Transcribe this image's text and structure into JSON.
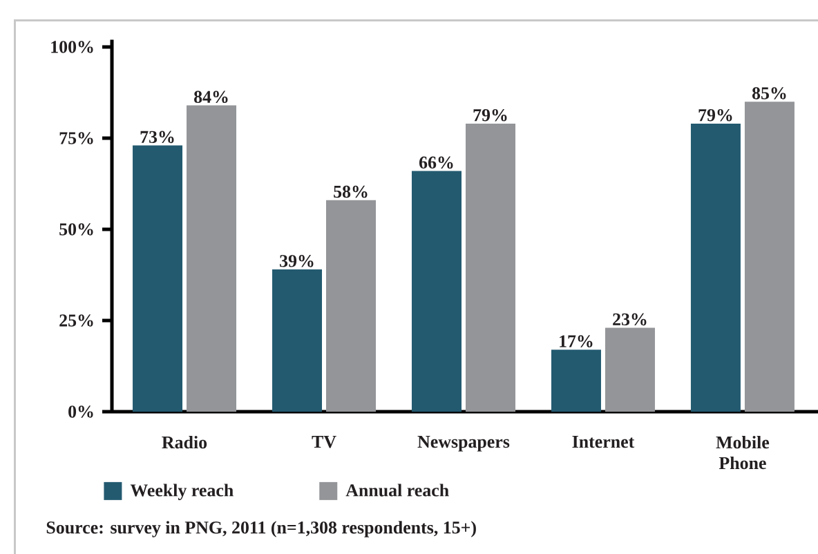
{
  "chart_data": {
    "type": "bar",
    "categories": [
      "Radio",
      "TV",
      "Newspapers",
      "Internet",
      "Mobile Phone"
    ],
    "series": [
      {
        "name": "Weekly reach",
        "color": "#235a70",
        "values": [
          73,
          39,
          66,
          17,
          79
        ],
        "value_labels": [
          "73%",
          "39%",
          "66%",
          "17%",
          "79%"
        ]
      },
      {
        "name": "Annual reach",
        "color": "#939598",
        "values": [
          84,
          58,
          79,
          23,
          85
        ],
        "value_labels": [
          "84%",
          "58%",
          "79%",
          "23%",
          "85%"
        ]
      }
    ],
    "ylim": [
      0,
      102
    ],
    "yticks": [
      {
        "value": 0,
        "label": "0%"
      },
      {
        "value": 25,
        "label": "25%"
      },
      {
        "value": 50,
        "label": "50%"
      },
      {
        "value": 75,
        "label": "75%"
      },
      {
        "value": 100,
        "label": "100%"
      }
    ],
    "grid": false,
    "legend": "bottom",
    "annotations": [
      "Source: survey in PNG, 2011 (n=1,308 respondents, 15+)"
    ]
  }
}
